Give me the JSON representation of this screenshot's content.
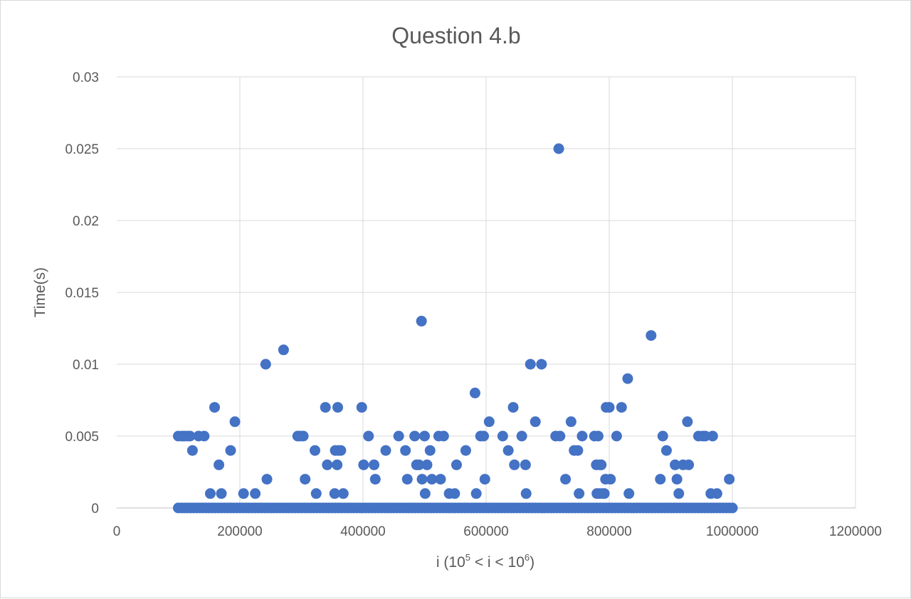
{
  "chart_data": {
    "type": "scatter",
    "title": "Question 4.b",
    "xlabel": {
      "prefix": "i (10",
      "sup1": "5",
      "middle": " < i  < 10",
      "sup2": "6",
      "suffix": ")"
    },
    "ylabel": "Time(s)",
    "xlim": [
      0,
      1200000
    ],
    "ylim": [
      0,
      0.03
    ],
    "xticks": [
      0,
      200000,
      400000,
      600000,
      800000,
      1000000,
      1200000
    ],
    "xtick_labels": [
      "0",
      "200000",
      "400000",
      "600000",
      "800000",
      "1000000",
      "1200000"
    ],
    "yticks": [
      0,
      0.005,
      0.01,
      0.015,
      0.02,
      0.025,
      0.03
    ],
    "ytick_labels": [
      "0",
      "0.005",
      "0.01",
      "0.015",
      "0.02",
      "0.025",
      "0.03"
    ],
    "grid": true,
    "legend": "none",
    "marker_color": "#4472C4",
    "baseline_range": [
      100000,
      1000000
    ],
    "baseline_value": 0,
    "points": [
      [
        100000,
        0.005
      ],
      [
        106000,
        0.005
      ],
      [
        110000,
        0.005
      ],
      [
        115000,
        0.005
      ],
      [
        119000,
        0.005
      ],
      [
        123000,
        0.004
      ],
      [
        133000,
        0.005
      ],
      [
        142000,
        0.005
      ],
      [
        152000,
        0.001
      ],
      [
        159000,
        0.007
      ],
      [
        166000,
        0.003
      ],
      [
        170000,
        0.001
      ],
      [
        185000,
        0.004
      ],
      [
        192000,
        0.006
      ],
      [
        206000,
        0.001
      ],
      [
        225000,
        0.001
      ],
      [
        242000,
        0.01
      ],
      [
        244000,
        0.002
      ],
      [
        271000,
        0.011
      ],
      [
        294000,
        0.005
      ],
      [
        298000,
        0.005
      ],
      [
        303000,
        0.005
      ],
      [
        306000,
        0.002
      ],
      [
        322000,
        0.004
      ],
      [
        324000,
        0.001
      ],
      [
        339000,
        0.007
      ],
      [
        342000,
        0.003
      ],
      [
        354000,
        0.001
      ],
      [
        355000,
        0.004
      ],
      [
        358000,
        0.003
      ],
      [
        359000,
        0.007
      ],
      [
        360000,
        0.004
      ],
      [
        364000,
        0.004
      ],
      [
        368000,
        0.001
      ],
      [
        398000,
        0.007
      ],
      [
        401000,
        0.003
      ],
      [
        409000,
        0.005
      ],
      [
        418000,
        0.003
      ],
      [
        420000,
        0.002
      ],
      [
        437000,
        0.004
      ],
      [
        458000,
        0.005
      ],
      [
        469000,
        0.004
      ],
      [
        472000,
        0.002
      ],
      [
        484000,
        0.005
      ],
      [
        487000,
        0.003
      ],
      [
        491000,
        0.003
      ],
      [
        495000,
        0.013
      ],
      [
        496000,
        0.002
      ],
      [
        500000,
        0.005
      ],
      [
        501000,
        0.001
      ],
      [
        504000,
        0.003
      ],
      [
        509000,
        0.004
      ],
      [
        512000,
        0.002
      ],
      [
        523000,
        0.005
      ],
      [
        526000,
        0.002
      ],
      [
        531000,
        0.005
      ],
      [
        540000,
        0.001
      ],
      [
        549000,
        0.001
      ],
      [
        552000,
        0.003
      ],
      [
        567000,
        0.004
      ],
      [
        582000,
        0.008
      ],
      [
        584000,
        0.001
      ],
      [
        591000,
        0.005
      ],
      [
        596000,
        0.005
      ],
      [
        598000,
        0.002
      ],
      [
        605000,
        0.006
      ],
      [
        627000,
        0.005
      ],
      [
        636000,
        0.004
      ],
      [
        644000,
        0.007
      ],
      [
        646000,
        0.003
      ],
      [
        658000,
        0.005
      ],
      [
        664000,
        0.003
      ],
      [
        665000,
        0.001
      ],
      [
        672000,
        0.01
      ],
      [
        680000,
        0.006
      ],
      [
        690000,
        0.01
      ],
      [
        713000,
        0.005
      ],
      [
        718000,
        0.025
      ],
      [
        720000,
        0.005
      ],
      [
        729000,
        0.002
      ],
      [
        738000,
        0.006
      ],
      [
        743000,
        0.004
      ],
      [
        749000,
        0.004
      ],
      [
        751000,
        0.001
      ],
      [
        756000,
        0.005
      ],
      [
        776000,
        0.005
      ],
      [
        779000,
        0.003
      ],
      [
        780000,
        0.001
      ],
      [
        782000,
        0.005
      ],
      [
        784000,
        0.001
      ],
      [
        785000,
        0.003
      ],
      [
        787000,
        0.003
      ],
      [
        789000,
        0.001
      ],
      [
        792000,
        0.001
      ],
      [
        794000,
        0.002
      ],
      [
        795000,
        0.007
      ],
      [
        800000,
        0.007
      ],
      [
        802000,
        0.002
      ],
      [
        812000,
        0.005
      ],
      [
        820000,
        0.007
      ],
      [
        830000,
        0.009
      ],
      [
        832000,
        0.001
      ],
      [
        868000,
        0.012
      ],
      [
        883000,
        0.002
      ],
      [
        887000,
        0.005
      ],
      [
        893000,
        0.004
      ],
      [
        907000,
        0.003
      ],
      [
        910000,
        0.002
      ],
      [
        913000,
        0.001
      ],
      [
        920000,
        0.003
      ],
      [
        927000,
        0.006
      ],
      [
        929000,
        0.003
      ],
      [
        945000,
        0.005
      ],
      [
        952000,
        0.005
      ],
      [
        956000,
        0.005
      ],
      [
        965000,
        0.001
      ],
      [
        968000,
        0.005
      ],
      [
        975000,
        0.001
      ],
      [
        995000,
        0.002
      ]
    ]
  }
}
